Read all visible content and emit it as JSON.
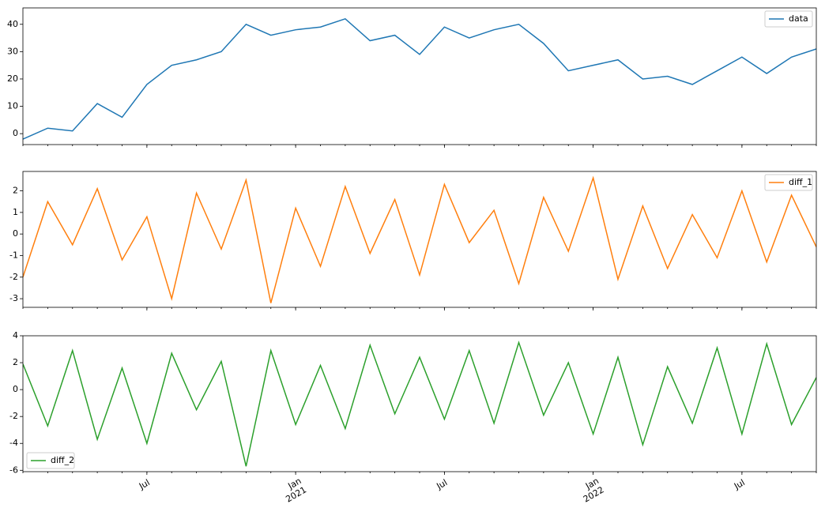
{
  "chart_data": [
    {
      "type": "line",
      "legend": "upper right",
      "xlim": [
        "2020-02",
        "2022-10"
      ],
      "ylim": [
        -4,
        46
      ],
      "yticks": [
        0,
        10,
        20,
        30,
        40
      ],
      "x": [
        "2020-02",
        "2020-03",
        "2020-04",
        "2020-05",
        "2020-06",
        "2020-07",
        "2020-08",
        "2020-09",
        "2020-10",
        "2020-11",
        "2020-12",
        "2021-01",
        "2021-02",
        "2021-03",
        "2021-04",
        "2021-05",
        "2021-06",
        "2021-07",
        "2021-08",
        "2021-09",
        "2021-10",
        "2021-11",
        "2021-12",
        "2022-01",
        "2022-02",
        "2022-03",
        "2022-04",
        "2022-05",
        "2022-06",
        "2022-07",
        "2022-08",
        "2022-09",
        "2022-10"
      ],
      "series": [
        {
          "name": "data",
          "color": "#1f77b4",
          "values": [
            -2,
            2,
            1,
            11,
            6,
            18,
            25,
            27,
            30,
            40,
            36,
            38,
            39,
            42,
            34,
            36,
            29,
            39,
            35,
            38,
            40,
            33,
            23,
            25,
            27,
            20,
            21,
            18,
            23,
            28,
            22,
            28,
            31
          ]
        }
      ]
    },
    {
      "type": "line",
      "legend": "upper right",
      "xlim": [
        "2020-02",
        "2022-10"
      ],
      "ylim": [
        -3.4,
        2.9
      ],
      "yticks": [
        -3,
        -2,
        -1,
        0,
        1,
        2
      ],
      "x": [
        "2020-02",
        "2020-03",
        "2020-04",
        "2020-05",
        "2020-06",
        "2020-07",
        "2020-08",
        "2020-09",
        "2020-10",
        "2020-11",
        "2020-12",
        "2021-01",
        "2021-02",
        "2021-03",
        "2021-04",
        "2021-05",
        "2021-06",
        "2021-07",
        "2021-08",
        "2021-09",
        "2021-10",
        "2021-11",
        "2021-12",
        "2022-01",
        "2022-02",
        "2022-03",
        "2022-04",
        "2022-05",
        "2022-06",
        "2022-07",
        "2022-08",
        "2022-09",
        "2022-10"
      ],
      "series": [
        {
          "name": "diff_1",
          "color": "#ff7f0e",
          "values": [
            -2,
            1.5,
            -0.5,
            2.1,
            -1.2,
            0.8,
            -3,
            1.9,
            -0.7,
            2.5,
            -3.2,
            1.2,
            -1.5,
            2.2,
            -0.9,
            1.6,
            -1.9,
            2.3,
            -0.4,
            1.1,
            -2.3,
            1.7,
            -0.8,
            2.6,
            -2.1,
            1.3,
            -1.6,
            0.9,
            -1.1,
            2.0,
            -1.3,
            1.8,
            -0.6
          ]
        }
      ]
    },
    {
      "type": "line",
      "legend": "lower left",
      "xlim": [
        "2020-02",
        "2022-10"
      ],
      "ylim": [
        -6.1,
        4
      ],
      "yticks": [
        -6,
        -4,
        -2,
        0,
        2,
        4
      ],
      "xticks": [
        {
          "value": "2020-07",
          "label": "Jul"
        },
        {
          "value": "2021-01",
          "label": "Jan 2021"
        },
        {
          "value": "2021-07",
          "label": "Jul"
        },
        {
          "value": "2022-01",
          "label": "Jan 2022"
        },
        {
          "value": "2022-07",
          "label": "Jul"
        }
      ],
      "x": [
        "2020-02",
        "2020-03",
        "2020-04",
        "2020-05",
        "2020-06",
        "2020-07",
        "2020-08",
        "2020-09",
        "2020-10",
        "2020-11",
        "2020-12",
        "2021-01",
        "2021-02",
        "2021-03",
        "2021-04",
        "2021-05",
        "2021-06",
        "2021-07",
        "2021-08",
        "2021-09",
        "2021-10",
        "2021-11",
        "2021-12",
        "2022-01",
        "2022-02",
        "2022-03",
        "2022-04",
        "2022-05",
        "2022-06",
        "2022-07",
        "2022-08",
        "2022-09",
        "2022-10"
      ],
      "series": [
        {
          "name": "diff_2",
          "color": "#2ca02c",
          "values": [
            1.9,
            -2.7,
            2.9,
            -3.7,
            1.6,
            -4.0,
            2.7,
            -1.5,
            2.1,
            -5.7,
            2.9,
            -2.6,
            1.8,
            -2.9,
            3.3,
            -1.8,
            2.4,
            -2.2,
            2.9,
            -2.5,
            3.5,
            -1.9,
            2.0,
            -3.3,
            2.4,
            -4.1,
            1.7,
            -2.5,
            3.1,
            -3.3,
            3.4,
            -2.6,
            0.9
          ]
        }
      ]
    }
  ]
}
